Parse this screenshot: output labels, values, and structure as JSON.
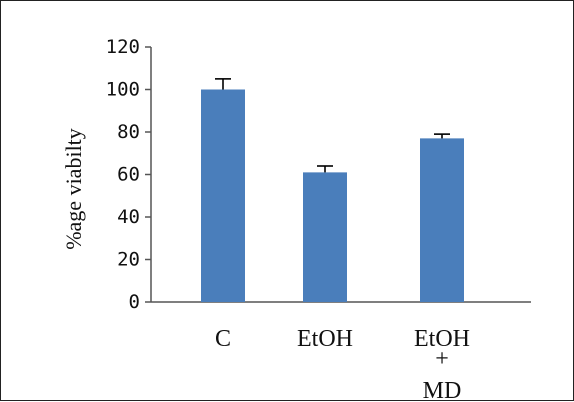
{
  "chart_data": {
    "type": "bar",
    "title": "",
    "xlabel": "",
    "ylabel": "%age viabilty",
    "categories": [
      "C",
      "EtOH",
      "EtOH + MD"
    ],
    "category_lines": [
      [
        "C"
      ],
      [
        "EtOH"
      ],
      [
        "EtOH",
        "+",
        "MD"
      ]
    ],
    "values": [
      100,
      61,
      77
    ],
    "errors": [
      5,
      3,
      2
    ],
    "ylim": [
      0,
      120
    ],
    "yticks": [
      0,
      20,
      40,
      60,
      80,
      100,
      120
    ],
    "grid": false,
    "legend": "none",
    "bar_color": "#4a7ebb"
  }
}
